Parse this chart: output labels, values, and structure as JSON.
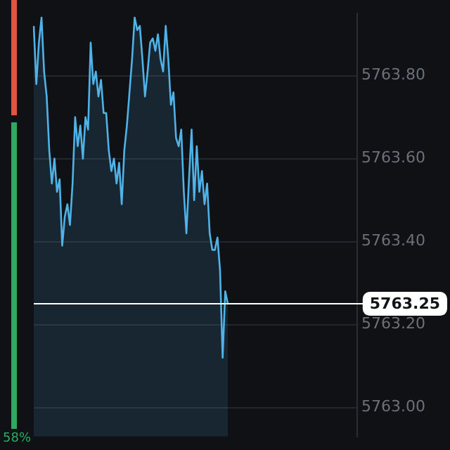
{
  "chart_data": {
    "type": "area",
    "categories": [
      null,
      null,
      null,
      null,
      null,
      null,
      null,
      null,
      null,
      null,
      null,
      null,
      null,
      null,
      null,
      null,
      null,
      null,
      null,
      null,
      null,
      null,
      null,
      null,
      null,
      null,
      null,
      null,
      null,
      null,
      null,
      null,
      null,
      null,
      null,
      null,
      null,
      null,
      null,
      null,
      null,
      null,
      null,
      null,
      null,
      null,
      null,
      null,
      null,
      null,
      null,
      null,
      null,
      null,
      null,
      null,
      null,
      null,
      null,
      null,
      null,
      null,
      null,
      null,
      null,
      null,
      null,
      null,
      null,
      null,
      null,
      null,
      null,
      null,
      null,
      null,
      null,
      null,
      null,
      null,
      null,
      null,
      null,
      null,
      null,
      null,
      null,
      null,
      null,
      null,
      null,
      null,
      null,
      null,
      null,
      null,
      null,
      null,
      null,
      null,
      null,
      null,
      null,
      null,
      null,
      null,
      null,
      null,
      null,
      null,
      null,
      null,
      null,
      null,
      null,
      null,
      null,
      null,
      null,
      null,
      null,
      null,
      null,
      null,
      null,
      null
    ],
    "series": [
      {
        "color": "#4fb3e8",
        "values": [
          5763.92,
          5763.78,
          5763.88,
          5763.94,
          5763.81,
          5763.75,
          5763.62,
          5763.54,
          5763.6,
          5763.52,
          5763.55,
          5763.39,
          5763.46,
          5763.49,
          5763.44,
          5763.54,
          5763.7,
          5763.63,
          5763.68,
          5763.6,
          5763.7,
          5763.67,
          5763.88,
          5763.78,
          5763.81,
          5763.75,
          5763.79,
          5763.71,
          5763.71,
          5763.62,
          5763.57,
          5763.6,
          5763.54,
          5763.59,
          5763.49,
          5763.62,
          5763.68,
          5763.76,
          5763.84,
          5763.94,
          5763.91,
          5763.92,
          5763.84,
          5763.75,
          5763.81,
          5763.88,
          5763.89,
          5763.86,
          5763.9,
          5763.84,
          5763.81,
          5763.92,
          5763.84,
          5763.73,
          5763.76,
          5763.65,
          5763.63,
          5763.67,
          5763.52,
          5763.42,
          5763.55,
          5763.67,
          5763.5,
          5763.63,
          5763.52,
          5763.57,
          5763.49,
          5763.54,
          5763.42,
          5763.38,
          5763.38,
          5763.41,
          5763.33,
          5763.12,
          5763.28,
          5763.25,
          null,
          null,
          null,
          null,
          null,
          null,
          null,
          null,
          null,
          null,
          null,
          null,
          null,
          null,
          null,
          null,
          null,
          null,
          null,
          null,
          null,
          null,
          null,
          null,
          null,
          null,
          null,
          null,
          null,
          null,
          null,
          null,
          null,
          null,
          null,
          null,
          null,
          null,
          null,
          null,
          null,
          null,
          null,
          null,
          null,
          null,
          null,
          null,
          null,
          null
        ]
      }
    ],
    "ylim": [
      5762.93,
      5763.95
    ],
    "yticks": [
      {
        "value": 5763,
        "label": "5763.00"
      },
      {
        "value": 5763.2,
        "label": "5763.20"
      },
      {
        "value": 5763.4,
        "label": "5763.40"
      },
      {
        "value": 5763.6,
        "label": "5763.60"
      },
      {
        "value": 5763.8,
        "label": "5763.80"
      }
    ],
    "ref_lines": [
      {
        "axis": "y",
        "value": 5763.25,
        "label": "5763.25",
        "color": "#ffffff"
      }
    ],
    "annotations": [
      "58%"
    ],
    "grid": "y",
    "legend": false,
    "marker": "none",
    "line_style": "solid",
    "tick_labels": "y"
  }
}
